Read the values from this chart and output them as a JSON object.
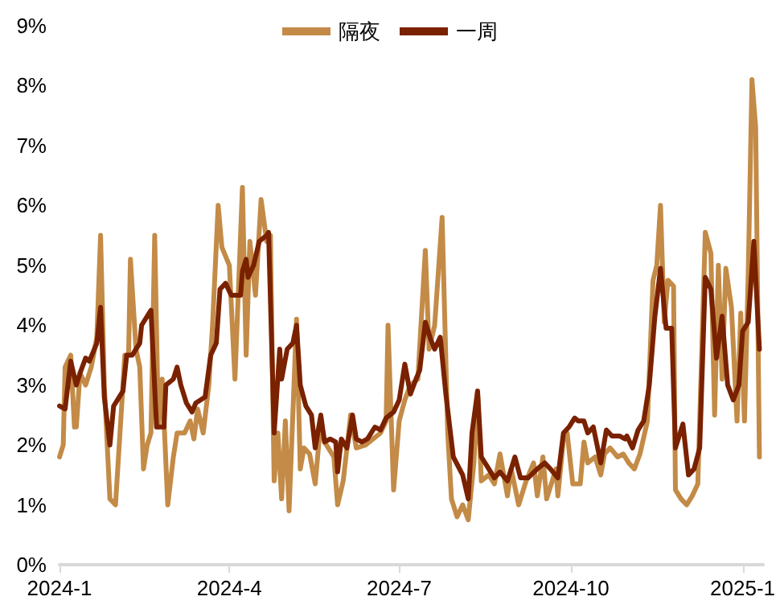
{
  "chart_data": {
    "type": "line",
    "legend": "top",
    "grid": false,
    "marker": "none",
    "line_style": "solid",
    "xlim": [
      "2024-01-01",
      "2025-01-12"
    ],
    "xticks": [
      {
        "value": "2024-01-01",
        "label": "2024-1"
      },
      {
        "value": "2024-04-01",
        "label": "2024-4"
      },
      {
        "value": "2024-07-01",
        "label": "2024-7"
      },
      {
        "value": "2024-10-01",
        "label": "2024-10"
      },
      {
        "value": "2025-01-01",
        "label": "2025-1"
      }
    ],
    "ylim": [
      0,
      9
    ],
    "yticks": [
      {
        "value": 0,
        "label": "0%"
      },
      {
        "value": 1,
        "label": "1%"
      },
      {
        "value": 2,
        "label": "2%"
      },
      {
        "value": 3,
        "label": "3%"
      },
      {
        "value": 4,
        "label": "4%"
      },
      {
        "value": 5,
        "label": "5%"
      },
      {
        "value": 6,
        "label": "6%"
      },
      {
        "value": 7,
        "label": "7%"
      },
      {
        "value": 8,
        "label": "8%"
      },
      {
        "value": 9,
        "label": "9%"
      }
    ],
    "series": [
      {
        "name": "隔夜",
        "color": "#c38b47",
        "x": [
          "2024-01-01",
          "2024-01-03",
          "2024-01-04",
          "2024-01-07",
          "2024-01-09",
          "2024-01-10",
          "2024-01-12",
          "2024-01-15",
          "2024-01-18",
          "2024-01-21",
          "2024-01-23",
          "2024-01-25",
          "2024-01-28",
          "2024-01-31",
          "2024-02-03",
          "2024-02-05",
          "2024-02-07",
          "2024-02-08",
          "2024-02-11",
          "2024-02-13",
          "2024-02-15",
          "2024-02-17",
          "2024-02-19",
          "2024-02-21",
          "2024-02-23",
          "2024-02-25",
          "2024-02-28",
          "2024-03-02",
          "2024-03-04",
          "2024-03-08",
          "2024-03-11",
          "2024-03-13",
          "2024-03-15",
          "2024-03-18",
          "2024-03-21",
          "2024-03-23",
          "2024-03-26",
          "2024-03-28",
          "2024-04-01",
          "2024-04-04",
          "2024-04-08",
          "2024-04-10",
          "2024-04-12",
          "2024-04-15",
          "2024-04-18",
          "2024-04-21",
          "2024-04-23",
          "2024-04-25",
          "2024-04-27",
          "2024-04-29",
          "2024-05-01",
          "2024-05-03",
          "2024-05-07",
          "2024-05-09",
          "2024-05-11",
          "2024-05-14",
          "2024-05-17",
          "2024-05-20",
          "2024-05-22",
          "2024-05-27",
          "2024-05-29",
          "2024-06-01",
          "2024-06-05",
          "2024-06-08",
          "2024-06-13",
          "2024-06-17",
          "2024-06-21",
          "2024-06-24",
          "2024-06-25",
          "2024-06-28",
          "2024-07-01",
          "2024-07-04",
          "2024-07-07",
          "2024-07-11",
          "2024-07-15",
          "2024-07-17",
          "2024-07-20",
          "2024-07-24",
          "2024-07-27",
          "2024-07-29",
          "2024-08-01",
          "2024-08-04",
          "2024-08-07",
          "2024-08-10",
          "2024-08-12",
          "2024-08-14",
          "2024-08-18",
          "2024-08-21",
          "2024-08-24",
          "2024-08-28",
          "2024-08-30",
          "2024-09-03",
          "2024-09-07",
          "2024-09-11",
          "2024-09-13",
          "2024-09-16",
          "2024-09-18",
          "2024-09-23",
          "2024-09-24",
          "2024-09-27",
          "2024-09-29",
          "2024-10-02",
          "2024-10-06",
          "2024-10-08",
          "2024-10-10",
          "2024-10-14",
          "2024-10-17",
          "2024-10-19",
          "2024-10-22",
          "2024-10-26",
          "2024-10-29",
          "2024-11-01",
          "2024-11-04",
          "2024-11-07",
          "2024-11-11",
          "2024-11-14",
          "2024-11-16",
          "2024-11-18",
          "2024-11-20",
          "2024-11-22",
          "2024-11-25",
          "2024-11-26",
          "2024-11-29",
          "2024-12-02",
          "2024-12-05",
          "2024-12-08",
          "2024-12-12",
          "2024-12-15",
          "2024-12-17",
          "2024-12-19",
          "2024-12-21",
          "2024-12-23",
          "2024-12-26",
          "2024-12-29",
          "2024-12-31",
          "2025-01-02",
          "2025-01-04",
          "2025-01-06",
          "2025-01-08",
          "2025-01-10"
        ],
        "values": [
          1.8,
          2.0,
          3.3,
          3.5,
          2.3,
          2.3,
          3.2,
          3.0,
          3.3,
          3.8,
          5.5,
          3.0,
          1.1,
          1.0,
          2.5,
          3.5,
          3.5,
          5.1,
          3.6,
          3.3,
          1.6,
          2.0,
          2.2,
          5.5,
          2.3,
          3.1,
          1.0,
          1.8,
          2.2,
          2.2,
          2.4,
          2.1,
          2.6,
          2.2,
          3.0,
          4.0,
          6.0,
          5.3,
          5.0,
          3.1,
          6.3,
          3.5,
          5.4,
          4.5,
          6.1,
          5.4,
          5.5,
          1.4,
          2.2,
          1.1,
          2.4,
          0.9,
          4.1,
          1.6,
          1.95,
          1.85,
          1.35,
          2.4,
          2.05,
          1.8,
          1.0,
          1.4,
          2.5,
          1.95,
          2.0,
          2.1,
          2.2,
          2.4,
          4.0,
          1.25,
          2.4,
          2.75,
          3.0,
          3.1,
          5.25,
          3.6,
          4.0,
          5.8,
          2.2,
          1.1,
          0.8,
          1.0,
          0.75,
          1.7,
          2.9,
          1.4,
          1.5,
          1.35,
          1.85,
          1.15,
          1.6,
          1.0,
          1.4,
          1.7,
          1.15,
          1.8,
          1.1,
          1.6,
          1.15,
          2.1,
          2.2,
          1.35,
          1.35,
          2.05,
          1.7,
          1.8,
          1.5,
          1.85,
          1.95,
          1.8,
          1.85,
          1.7,
          1.6,
          1.85,
          2.4,
          4.75,
          5.0,
          6.0,
          4.05,
          4.75,
          4.65,
          1.25,
          1.1,
          1.0,
          1.15,
          1.35,
          5.55,
          5.2,
          2.5,
          5.0,
          3.1,
          4.95,
          4.3,
          2.4,
          4.2,
          2.4,
          4.85,
          8.1,
          7.3,
          1.8
        ]
      },
      {
        "name": "一周",
        "color": "#7a2100",
        "x": [
          "2024-01-01",
          "2024-01-04",
          "2024-01-07",
          "2024-01-10",
          "2024-01-12",
          "2024-01-15",
          "2024-01-17",
          "2024-01-21",
          "2024-01-23",
          "2024-01-25",
          "2024-01-28",
          "2024-01-30",
          "2024-02-02",
          "2024-02-04",
          "2024-02-06",
          "2024-02-09",
          "2024-02-13",
          "2024-02-14",
          "2024-02-19",
          "2024-02-22",
          "2024-02-24",
          "2024-02-26",
          "2024-02-27",
          "2024-03-02",
          "2024-03-04",
          "2024-03-06",
          "2024-03-09",
          "2024-03-12",
          "2024-03-14",
          "2024-03-19",
          "2024-03-22",
          "2024-03-25",
          "2024-03-27",
          "2024-03-30",
          "2024-04-02",
          "2024-04-07",
          "2024-04-08",
          "2024-04-10",
          "2024-04-11",
          "2024-04-14",
          "2024-04-17",
          "2024-04-21",
          "2024-04-22",
          "2024-04-25",
          "2024-04-28",
          "2024-04-29",
          "2024-05-02",
          "2024-05-05",
          "2024-05-07",
          "2024-05-09",
          "2024-05-12",
          "2024-05-15",
          "2024-05-17",
          "2024-05-20",
          "2024-05-22",
          "2024-05-25",
          "2024-05-28",
          "2024-05-29",
          "2024-05-31",
          "2024-06-03",
          "2024-06-06",
          "2024-06-08",
          "2024-06-11",
          "2024-06-14",
          "2024-06-18",
          "2024-06-21",
          "2024-06-24",
          "2024-06-28",
          "2024-07-01",
          "2024-07-04",
          "2024-07-07",
          "2024-07-10",
          "2024-07-12",
          "2024-07-15",
          "2024-07-18",
          "2024-07-20",
          "2024-07-23",
          "2024-07-26",
          "2024-07-30",
          "2024-08-04",
          "2024-08-07",
          "2024-08-09",
          "2024-08-12",
          "2024-08-14",
          "2024-08-17",
          "2024-08-21",
          "2024-08-24",
          "2024-08-28",
          "2024-09-01",
          "2024-09-04",
          "2024-09-08",
          "2024-09-13",
          "2024-09-17",
          "2024-09-20",
          "2024-09-24",
          "2024-09-27",
          "2024-09-30",
          "2024-10-03",
          "2024-10-05",
          "2024-10-08",
          "2024-10-10",
          "2024-10-13",
          "2024-10-17",
          "2024-10-20",
          "2024-10-23",
          "2024-10-27",
          "2024-10-30",
          "2024-10-31",
          "2024-11-03",
          "2024-11-06",
          "2024-11-09",
          "2024-11-12",
          "2024-11-15",
          "2024-11-18",
          "2024-11-21",
          "2024-11-24",
          "2024-11-26",
          "2024-11-30",
          "2024-12-03",
          "2024-12-06",
          "2024-12-09",
          "2024-12-12",
          "2024-12-15",
          "2024-12-18",
          "2024-12-21",
          "2024-12-24",
          "2024-12-27",
          "2024-12-30",
          "2025-01-01",
          "2025-01-04",
          "2025-01-07",
          "2025-01-10"
        ],
        "values": [
          2.65,
          2.6,
          3.4,
          3.0,
          3.2,
          3.45,
          3.4,
          3.7,
          4.3,
          2.8,
          2.0,
          2.65,
          2.8,
          2.9,
          3.5,
          3.5,
          3.7,
          4.0,
          4.25,
          2.3,
          2.3,
          2.3,
          3.0,
          3.1,
          3.3,
          3.0,
          2.7,
          2.55,
          2.7,
          2.8,
          3.5,
          3.7,
          4.6,
          4.7,
          4.5,
          4.5,
          4.9,
          5.1,
          4.8,
          5.0,
          5.4,
          5.5,
          5.55,
          2.2,
          3.6,
          3.1,
          3.6,
          3.7,
          4.0,
          3.0,
          2.65,
          2.5,
          1.95,
          2.5,
          2.05,
          2.1,
          2.05,
          1.55,
          2.1,
          1.95,
          2.5,
          2.1,
          2.05,
          2.1,
          2.3,
          2.25,
          2.45,
          2.55,
          2.75,
          3.35,
          2.85,
          3.1,
          3.25,
          4.05,
          3.75,
          3.6,
          3.8,
          2.85,
          1.8,
          1.5,
          1.1,
          2.2,
          2.9,
          1.8,
          1.65,
          1.45,
          1.55,
          1.4,
          1.8,
          1.45,
          1.45,
          1.6,
          1.7,
          1.6,
          1.45,
          2.2,
          2.3,
          2.45,
          2.4,
          2.4,
          2.2,
          2.3,
          1.7,
          2.25,
          2.15,
          2.15,
          2.1,
          2.15,
          1.95,
          2.25,
          2.4,
          3.0,
          4.15,
          4.95,
          3.95,
          3.95,
          1.95,
          2.35,
          1.5,
          1.6,
          1.95,
          4.8,
          4.6,
          3.45,
          4.15,
          3.0,
          2.75,
          3.0,
          3.9,
          4.05,
          5.4,
          3.6
        ]
      }
    ]
  }
}
